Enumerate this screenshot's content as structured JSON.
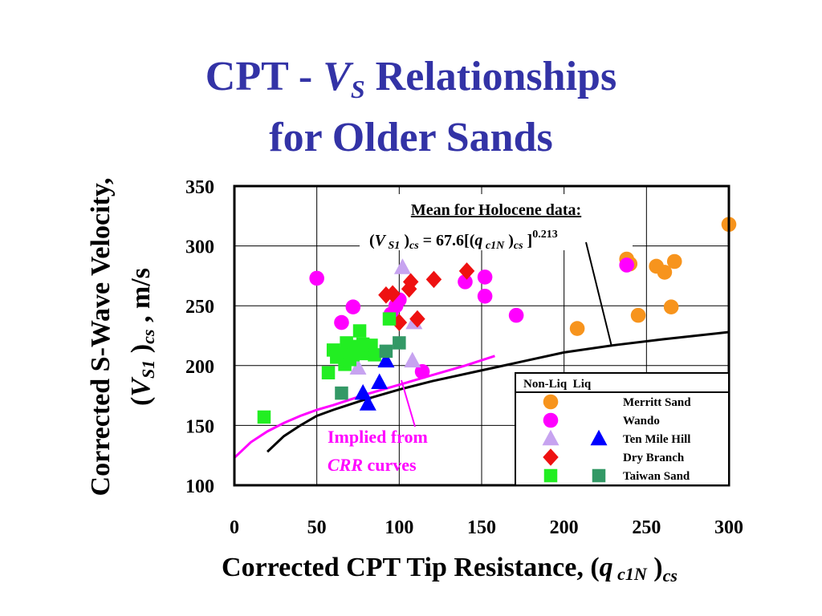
{
  "title": {
    "line1_prefix": "CPT - ",
    "line1_v": "V",
    "line1_sub": "S",
    "line1_suffix": " Relationships",
    "line2": "for Older Sands"
  },
  "chart_data": {
    "type": "scatter",
    "xlabel": "Corrected CPT Tip Resistance, (q c1N )cs",
    "ylabel": "Corrected S-Wave Velocity, (VS1 )cs , m/s",
    "xlim": [
      0,
      300
    ],
    "ylim": [
      100,
      350
    ],
    "xticks": [
      0,
      50,
      100,
      150,
      200,
      250,
      300
    ],
    "yticks": [
      100,
      150,
      200,
      250,
      300,
      350
    ],
    "grid": true,
    "legend_placement": "bottom-right",
    "legend_header": "Non-Liq  Liq",
    "annotations": {
      "mean_title": "Mean for Holocene data:",
      "mean_eq": "(VS1 )cs  = 67.6[(q c1N )cs ]0.213",
      "implied_line1": "Implied from",
      "implied_line2_italic": "CRR",
      "implied_line2": " curves"
    },
    "lines": [
      {
        "name": "Mean for Holocene data",
        "color": "#000000",
        "x": [
          20,
          30,
          40,
          50,
          60,
          80,
          100,
          120,
          150,
          180,
          200,
          230,
          260,
          300
        ],
        "y": [
          128,
          141,
          150,
          158,
          163,
          172,
          180,
          187,
          196,
          205,
          211,
          217,
          222,
          228
        ]
      },
      {
        "name": "Implied from CRR curves",
        "color": "#ff00ff",
        "x": [
          0,
          10,
          20,
          30,
          40,
          50,
          60,
          80,
          100,
          120,
          140,
          158
        ],
        "y": [
          123,
          136,
          145,
          152,
          158,
          163,
          167,
          176,
          184,
          192,
          200,
          208
        ]
      }
    ],
    "series": [
      {
        "name": "Merritt Sand",
        "marker": "circle",
        "color": "#f7941d",
        "state": "Non-Liq",
        "x": [
          208,
          238,
          240,
          245,
          256,
          261,
          265,
          267,
          300
        ],
        "y": [
          231,
          289,
          285,
          242,
          283,
          278,
          249,
          287,
          318
        ]
      },
      {
        "name": "Wando",
        "marker": "circle",
        "color": "#ff00ff",
        "state": "Non-Liq",
        "x": [
          50,
          65,
          72,
          95,
          98,
          100,
          114,
          140,
          152,
          152,
          171,
          238
        ],
        "y": [
          273,
          236,
          249,
          243,
          250,
          255,
          195,
          270,
          274,
          258,
          242,
          284
        ]
      },
      {
        "name": "Ten Mile Hill",
        "marker": "triangle",
        "color": "#c7a3f0",
        "state": "Non-Liq",
        "x": [
          75,
          102,
          108,
          109
        ],
        "y": [
          198,
          282,
          204,
          236
        ]
      },
      {
        "name": "Ten Mile Hill",
        "marker": "triangle",
        "color": "#0000ff",
        "state": "Liq",
        "x": [
          78,
          81,
          88,
          92
        ],
        "y": [
          177,
          168,
          186,
          204
        ]
      },
      {
        "name": "Dry Branch",
        "marker": "diamond",
        "color": "#ee1111",
        "state": "Non-Liq",
        "x": [
          92,
          96,
          100,
          106,
          107,
          111,
          121,
          141
        ],
        "y": [
          259,
          260,
          236,
          264,
          270,
          239,
          272,
          279
        ]
      },
      {
        "name": "Taiwan Sand",
        "marker": "square",
        "color": "#22ee22",
        "state": "Non-Liq",
        "x": [
          18,
          57,
          60,
          62,
          65,
          67,
          68,
          70,
          72,
          73,
          75,
          76,
          78,
          80,
          82,
          83,
          85,
          94
        ],
        "y": [
          157,
          194,
          213,
          207,
          210,
          201,
          219,
          205,
          209,
          212,
          216,
          229,
          218,
          210,
          214,
          217,
          209,
          239
        ]
      },
      {
        "name": "Taiwan Sand",
        "marker": "square",
        "color": "#339966",
        "state": "Liq",
        "x": [
          65,
          92,
          100
        ],
        "y": [
          177,
          212,
          219
        ]
      }
    ],
    "legend": [
      {
        "label": "Merritt Sand",
        "nonliq": {
          "marker": "circle",
          "color": "#f7941d"
        }
      },
      {
        "label": "Wando",
        "nonliq": {
          "marker": "circle",
          "color": "#ff00ff"
        }
      },
      {
        "label": "Ten Mile Hill",
        "nonliq": {
          "marker": "triangle",
          "color": "#c7a3f0"
        },
        "liq": {
          "marker": "triangle",
          "color": "#0000ff"
        }
      },
      {
        "label": "Dry Branch",
        "nonliq": {
          "marker": "diamond",
          "color": "#ee1111"
        }
      },
      {
        "label": "Taiwan Sand",
        "nonliq": {
          "marker": "square",
          "color": "#22ee22"
        },
        "liq": {
          "marker": "square",
          "color": "#339966"
        }
      }
    ]
  }
}
